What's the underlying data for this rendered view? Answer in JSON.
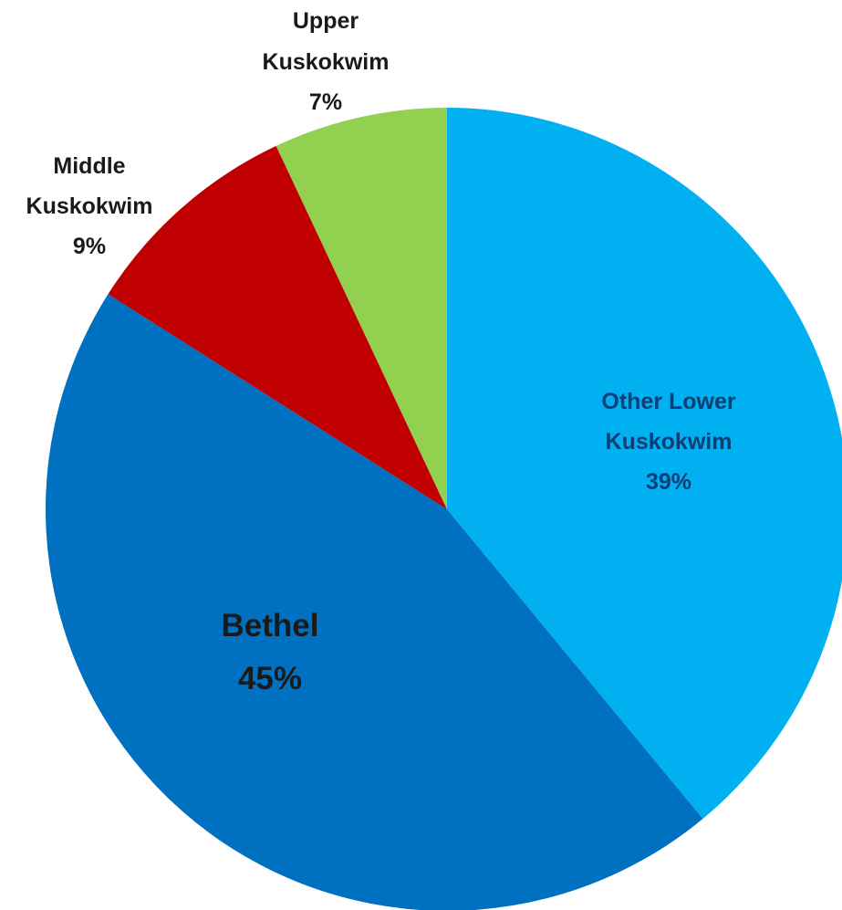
{
  "chart_data": {
    "type": "pie",
    "title": "",
    "slices": [
      {
        "name": "Other Lower Kuskokwim",
        "value": 39,
        "pct_label": "39%",
        "color": "#00b0f0"
      },
      {
        "name": "Bethel",
        "value": 45,
        "pct_label": "45%",
        "color": "#0070c0"
      },
      {
        "name": "Middle Kuskokwim",
        "value": 9,
        "pct_label": "9%",
        "color": "#c00000"
      },
      {
        "name": "Upper Kuskokwim",
        "value": 7,
        "pct_label": "7%",
        "color": "#92d050"
      }
    ],
    "labels": {
      "other_lower": {
        "line1": "Other Lower",
        "line2": "Kuskokwim",
        "line3": "39%"
      },
      "bethel": {
        "line1": "Bethel",
        "line2": "45%"
      },
      "middle": {
        "line1": "Middle",
        "line2": "Kuskokwim",
        "line3": "9%"
      },
      "upper": {
        "line1": "Upper",
        "line2": "Kuskokwim",
        "line3": "7%"
      }
    },
    "start_angle_deg": 0,
    "direction": "clockwise",
    "legend": "none"
  }
}
